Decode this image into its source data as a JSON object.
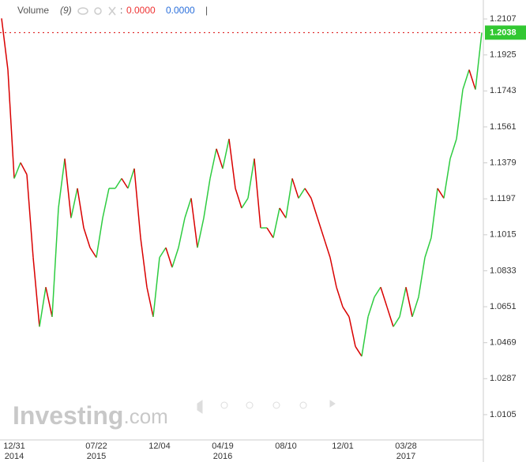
{
  "chart_data": {
    "type": "line",
    "legend": {
      "name": "Volume",
      "period": "(9)",
      "sep": ":",
      "value_1": "0.0000",
      "value_2": "0.0000",
      "cursor": "|"
    },
    "brand": {
      "main": "Investing",
      "suffix": ".com"
    },
    "categories": [
      null,
      null,
      "12/31",
      null,
      null,
      null,
      null,
      null,
      null,
      null,
      null,
      null,
      null,
      null,
      null,
      "07/22",
      null,
      null,
      null,
      null,
      null,
      null,
      null,
      null,
      null,
      "12/04",
      null,
      null,
      null,
      null,
      null,
      null,
      null,
      null,
      null,
      "04/19",
      null,
      null,
      null,
      null,
      null,
      null,
      null,
      null,
      null,
      "08/10",
      null,
      null,
      null,
      null,
      null,
      null,
      null,
      null,
      "12/01",
      null,
      null,
      null,
      null,
      null,
      null,
      null,
      null,
      null,
      "03/28",
      null,
      null,
      null,
      null,
      null,
      null,
      null,
      null,
      null,
      null,
      null,
      null
    ],
    "years": [
      null,
      null,
      "2014",
      null,
      null,
      null,
      null,
      null,
      null,
      null,
      null,
      null,
      null,
      null,
      null,
      "2015",
      null,
      null,
      null,
      null,
      null,
      null,
      null,
      null,
      null,
      null,
      null,
      null,
      null,
      null,
      null,
      null,
      null,
      null,
      null,
      "2016",
      null,
      null,
      null,
      null,
      null,
      null,
      null,
      null,
      null,
      null,
      null,
      null,
      null,
      null,
      null,
      null,
      null,
      null,
      null,
      null,
      null,
      null,
      null,
      null,
      null,
      null,
      null,
      null,
      "2017",
      null,
      null,
      null,
      null,
      null,
      null,
      null,
      null,
      null,
      null,
      null,
      null
    ],
    "values": [
      1.211,
      1.185,
      1.13,
      1.138,
      1.132,
      1.09,
      1.055,
      1.075,
      1.06,
      1.115,
      1.14,
      1.11,
      1.125,
      1.105,
      1.095,
      1.09,
      1.11,
      1.125,
      1.125,
      1.13,
      1.125,
      1.135,
      1.1,
      1.075,
      1.06,
      1.09,
      1.095,
      1.085,
      1.095,
      1.11,
      1.12,
      1.095,
      1.11,
      1.13,
      1.145,
      1.135,
      1.15,
      1.125,
      1.115,
      1.12,
      1.14,
      1.105,
      1.105,
      1.1,
      1.115,
      1.11,
      1.13,
      1.12,
      1.125,
      1.12,
      1.11,
      1.1,
      1.09,
      1.075,
      1.065,
      1.06,
      1.045,
      1.04,
      1.06,
      1.07,
      1.075,
      1.065,
      1.055,
      1.06,
      1.075,
      1.06,
      1.07,
      1.09,
      1.1,
      1.125,
      1.12,
      1.14,
      1.15,
      1.175,
      1.185,
      1.175,
      1.2038
    ],
    "up_color": "#2ecc40",
    "down_color": "#d90000",
    "last_color": "#32c832",
    "ylim": [
      0.9977,
      1.2203
    ],
    "yticks": [
      1.2107,
      1.1925,
      1.1743,
      1.1561,
      1.1379,
      1.1197,
      1.1015,
      1.0833,
      1.0651,
      1.0469,
      1.0287,
      1.0105
    ]
  }
}
